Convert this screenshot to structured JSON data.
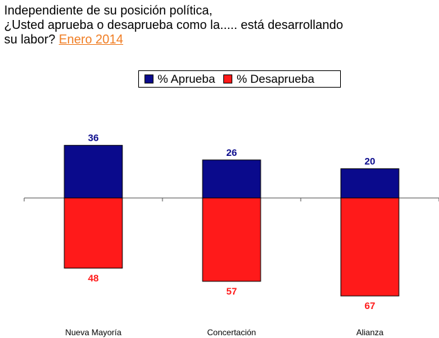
{
  "header": {
    "line1": "Independiente de su posición política,",
    "line2": "¿Usted aprueba o desaprueba como la..... está desarrollando",
    "line3_prefix": "su labor?",
    "date": "Enero 2014"
  },
  "colors": {
    "aprueba": "#0a0a8c",
    "desaprueba": "#ff1a1a",
    "date_accent": "#f07d23"
  },
  "chart_data": {
    "type": "bar",
    "title": "Independiente de su posición política, ¿Usted aprueba o desaprueba como la..... está desarrollando su labor? Enero 2014",
    "categories": [
      "Nueva Mayoría",
      "Concertación",
      "Alianza"
    ],
    "series": [
      {
        "name": "% Aprueba",
        "values": [
          36,
          26,
          20
        ],
        "direction": "up"
      },
      {
        "name": "% Desaprueba",
        "values": [
          48,
          57,
          67
        ],
        "direction": "down"
      }
    ],
    "legend_position": "top-center",
    "ylim": [
      -67,
      36
    ],
    "grid": false
  }
}
